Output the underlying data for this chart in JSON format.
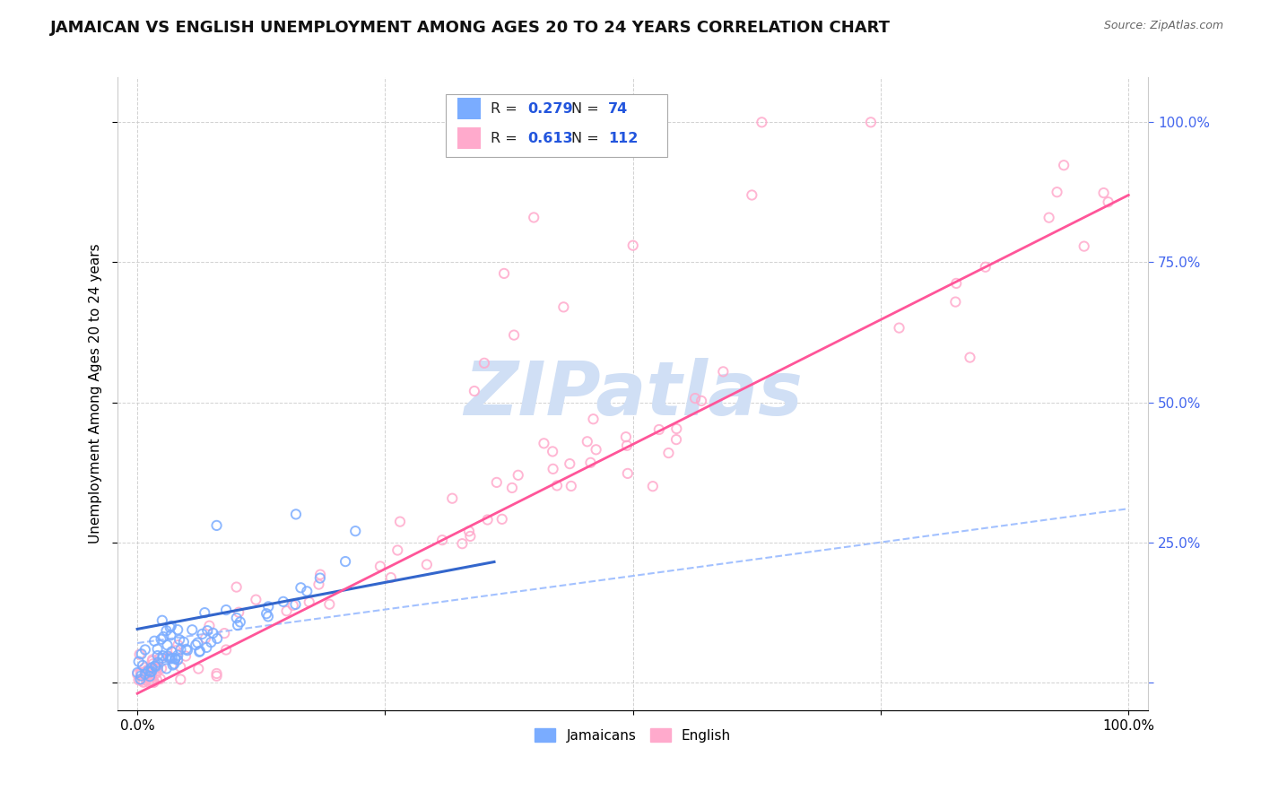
{
  "title": "JAMAICAN VS ENGLISH UNEMPLOYMENT AMONG AGES 20 TO 24 YEARS CORRELATION CHART",
  "source": "Source: ZipAtlas.com",
  "ylabel": "Unemployment Among Ages 20 to 24 years",
  "xlim": [
    -0.02,
    1.02
  ],
  "ylim": [
    -0.05,
    1.08
  ],
  "xtick_vals": [
    0.0,
    0.25,
    0.5,
    0.75,
    1.0
  ],
  "xtick_labels": [
    "0.0%",
    "",
    "",
    "",
    "100.0%"
  ],
  "ytick_vals": [
    0.0,
    0.25,
    0.5,
    0.75,
    1.0
  ],
  "ytick_right_labels": [
    "",
    "25.0%",
    "50.0%",
    "75.0%",
    "100.0%"
  ],
  "jamaicans_color": "#7aacff",
  "english_color": "#ffaacc",
  "jamaicans_line_color": "#3366cc",
  "english_line_color": "#ff5599",
  "dashed_line_color": "#99bbff",
  "jamaicans_R": 0.279,
  "jamaicans_N": 74,
  "english_R": 0.613,
  "english_N": 112,
  "background_color": "#ffffff",
  "grid_color": "#cccccc",
  "right_tick_color": "#4466ee",
  "title_fontsize": 13,
  "axis_label_fontsize": 11,
  "tick_fontsize": 11,
  "legend_R_color": "#2255dd",
  "watermark_color": "#d0dff5"
}
